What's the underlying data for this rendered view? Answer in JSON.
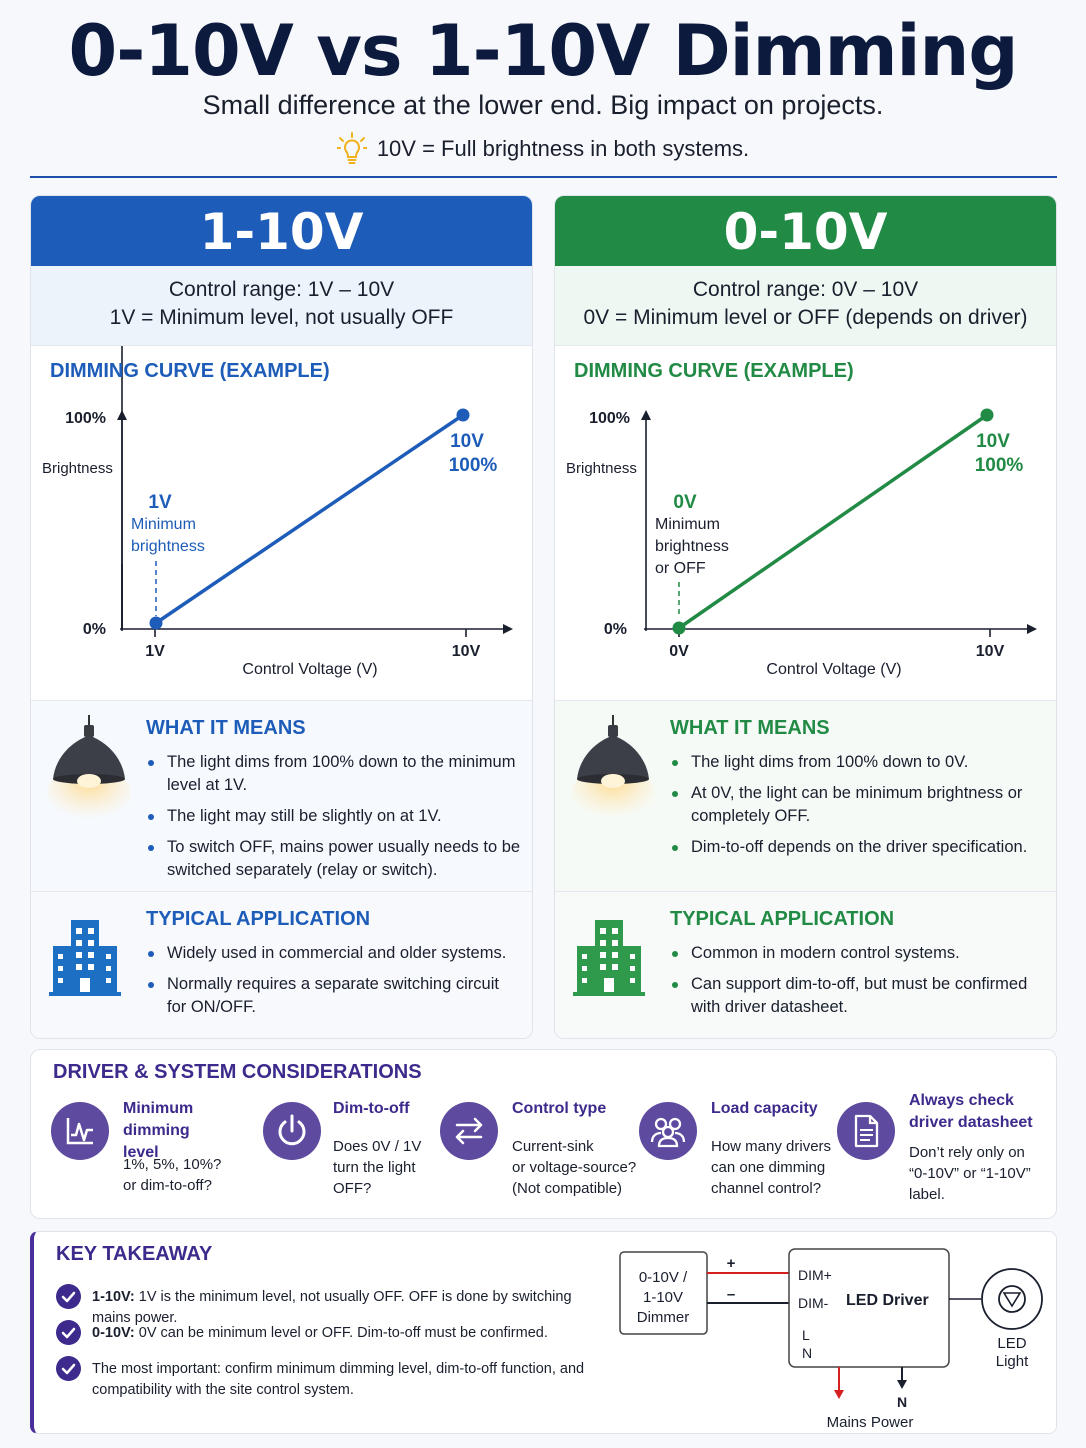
{
  "header": {
    "title": "0-10V vs 1-10V Dimming",
    "subtitle": "Small difference at the lower end. Big impact on projects.",
    "note": "10V = Full brightness in both systems."
  },
  "colors": {
    "blue": "#1d5cb8",
    "green": "#218a45",
    "purple": "#3d2a8c",
    "navy": "#0c1a3d"
  },
  "panels": [
    {
      "title": "1-10V",
      "range_line1": "Control range: 1V – 10V",
      "range_line2": "1V = Minimum level, not usually OFF",
      "curve_title": "DIMMING CURVE (EXAMPLE)",
      "y_top": "100%",
      "y_bottom": "0%",
      "y_label": "Brightness",
      "x_start": "1V",
      "x_end": "10V",
      "x_label": "Control Voltage (V)",
      "end_label_v": "10V",
      "end_label_pct": "100%",
      "start_label_v": "1V",
      "start_note": [
        "Minimum",
        "brightness"
      ],
      "means_title": "WHAT IT MEANS",
      "means": [
        "The light dims from 100% down to the minimum level at 1V.",
        "The light may still be slightly on at 1V.",
        "To switch OFF, mains power usually needs to be switched separately (relay or switch)."
      ],
      "app_title": "TYPICAL APPLICATION",
      "app": [
        "Widely used in commercial and older systems.",
        "Normally requires a separate switching circuit for ON/OFF."
      ]
    },
    {
      "title": "0-10V",
      "range_line1": "Control range: 0V – 10V",
      "range_line2": "0V = Minimum level or OFF (depends on driver)",
      "curve_title": "DIMMING CURVE (EXAMPLE)",
      "y_top": "100%",
      "y_bottom": "0%",
      "y_label": "Brightness",
      "x_start": "0V",
      "x_end": "10V",
      "x_label": "Control Voltage (V)",
      "end_label_v": "10V",
      "end_label_pct": "100%",
      "start_label_v": "0V",
      "start_note": [
        "Minimum",
        "brightness",
        "or OFF"
      ],
      "means_title": "WHAT IT MEANS",
      "means": [
        "The light dims from 100% down to 0V.",
        "At 0V, the light can be minimum brightness or completely OFF.",
        "Dim-to-off depends on the driver specification."
      ],
      "app_title": "TYPICAL APPLICATION",
      "app": [
        "Common in modern control systems.",
        "Can support dim-to-off, but must be confirmed with driver datasheet."
      ]
    }
  ],
  "considerations": {
    "title": "DRIVER & SYSTEM CONSIDERATIONS",
    "items": [
      {
        "icon": "chart-icon",
        "name": [
          "Minimum dimming",
          "level"
        ],
        "desc": [
          "1%, 5%, 10%?",
          "or dim-to-off?"
        ]
      },
      {
        "icon": "power-icon",
        "name": [
          "Dim-to-off"
        ],
        "desc": [
          "Does 0V / 1V",
          "turn the light",
          "OFF?"
        ]
      },
      {
        "icon": "swap-icon",
        "name": [
          "Control type"
        ],
        "desc": [
          "Current-sink",
          "or voltage-source?",
          "(Not compatible)"
        ]
      },
      {
        "icon": "users-icon",
        "name": [
          "Load capacity"
        ],
        "desc": [
          "How many drivers",
          "can one dimming",
          "channel control?"
        ]
      },
      {
        "icon": "document-icon",
        "name": [
          "Always check",
          "driver datasheet"
        ],
        "desc": [
          "Don’t rely only on",
          "“0-10V” or “1-10V”",
          "label."
        ]
      }
    ]
  },
  "takeaway": {
    "title": "KEY TAKEAWAY",
    "items": [
      {
        "bold": "1-10V:",
        "text": " 1V is the minimum level, not usually OFF. OFF is done by switching mains power."
      },
      {
        "bold": "0-10V:",
        "text": " 0V can be minimum level or OFF. Dim-to-off must be confirmed."
      },
      {
        "bold": "",
        "text": "The most important: confirm minimum dimming level, dim-to-off function, and compatibility with the site control system."
      }
    ]
  },
  "wiring": {
    "dimmer": [
      "0-10V /",
      "1-10V",
      "Dimmer"
    ],
    "plus": "+",
    "minus": "–",
    "dim_plus": "DIM+",
    "dim_minus": "DIM-",
    "driver": "LED Driver",
    "l": "L",
    "n": "N",
    "n_arrow": "N",
    "mains": "Mains Power",
    "led": [
      "LED",
      "Light"
    ]
  }
}
